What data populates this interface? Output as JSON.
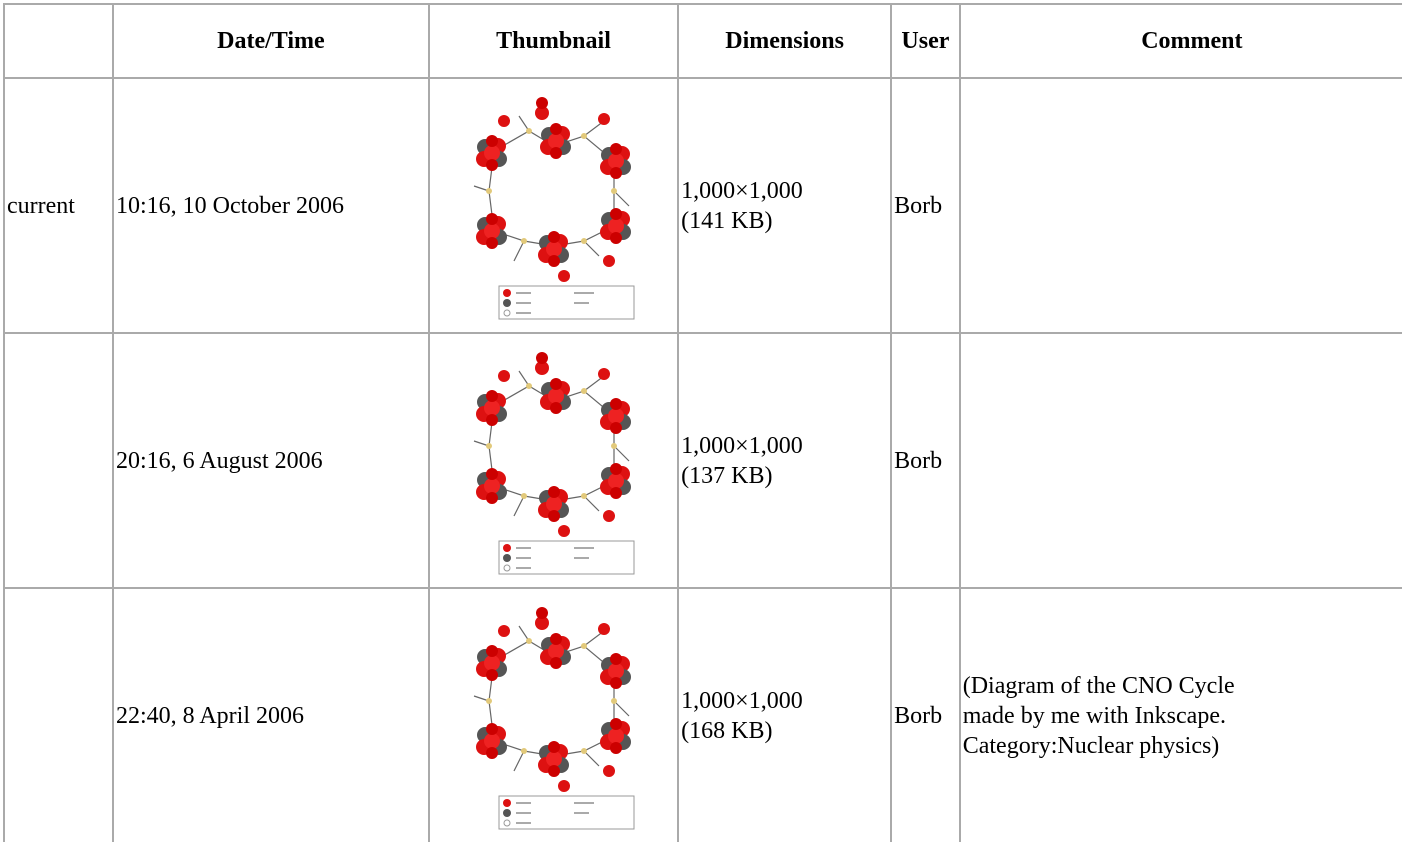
{
  "table": {
    "header": [
      "Date/Time",
      "Thumbnail",
      "Dimensions",
      "User",
      "Comment"
    ],
    "rows": [
      {
        "status": "current",
        "datetime": "10:16, 10 October 2006",
        "size": "1,000×1,000",
        "file": "(141 KB)",
        "user": "Borb",
        "comment": null
      },
      {
        "status": null,
        "datetime": "20:16, 6 August 2006",
        "size": "1,000×1,000",
        "file": "(137 KB)",
        "user": "Borb",
        "comment": null
      },
      {
        "status": null,
        "datetime": "22:40, 8 April 2006",
        "size": "1,000×1,000",
        "file": "(168 KB)",
        "user": "Borb",
        "comment": "(Diagram of the CNO Cycle made by me with Inkscape. Category:Nuclear physics)"
      }
    ]
  }
}
